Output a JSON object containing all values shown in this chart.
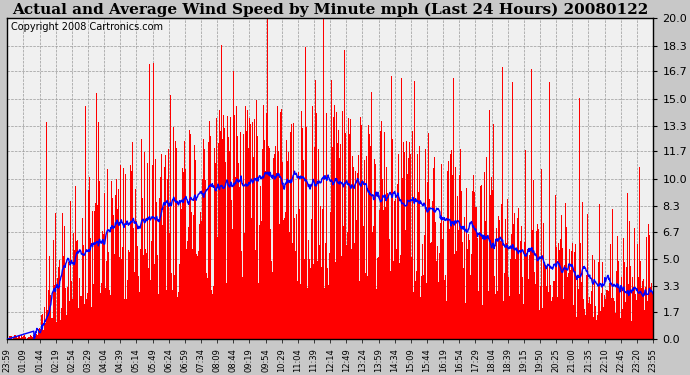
{
  "title": "Actual and Average Wind Speed by Minute mph (Last 24 Hours) 20080122",
  "copyright": "Copyright 2008 Cartronics.com",
  "yticks": [
    0.0,
    1.7,
    3.3,
    5.0,
    6.7,
    8.3,
    10.0,
    11.7,
    13.3,
    15.0,
    16.7,
    18.3,
    20.0
  ],
  "ymin": 0.0,
  "ymax": 20.0,
  "bar_color": "#FF0000",
  "line_color": "#0000FF",
  "bg_color": "#D8D8D8",
  "grid_color": "#AAAAAA",
  "plot_bg_color": "#F0F0F0",
  "title_fontsize": 11,
  "copyright_fontsize": 7,
  "xtick_labels": [
    "23:59",
    "01:09",
    "01:44",
    "02:19",
    "02:54",
    "03:29",
    "04:04",
    "04:39",
    "05:14",
    "05:49",
    "06:24",
    "06:59",
    "07:34",
    "08:09",
    "08:44",
    "09:19",
    "09:54",
    "10:29",
    "11:04",
    "11:39",
    "12:14",
    "12:49",
    "13:24",
    "13:59",
    "14:34",
    "15:09",
    "15:44",
    "16:19",
    "16:54",
    "17:29",
    "18:04",
    "18:39",
    "19:15",
    "19:50",
    "20:25",
    "21:00",
    "21:35",
    "22:10",
    "22:45",
    "23:20",
    "23:55"
  ],
  "seed": 12345
}
